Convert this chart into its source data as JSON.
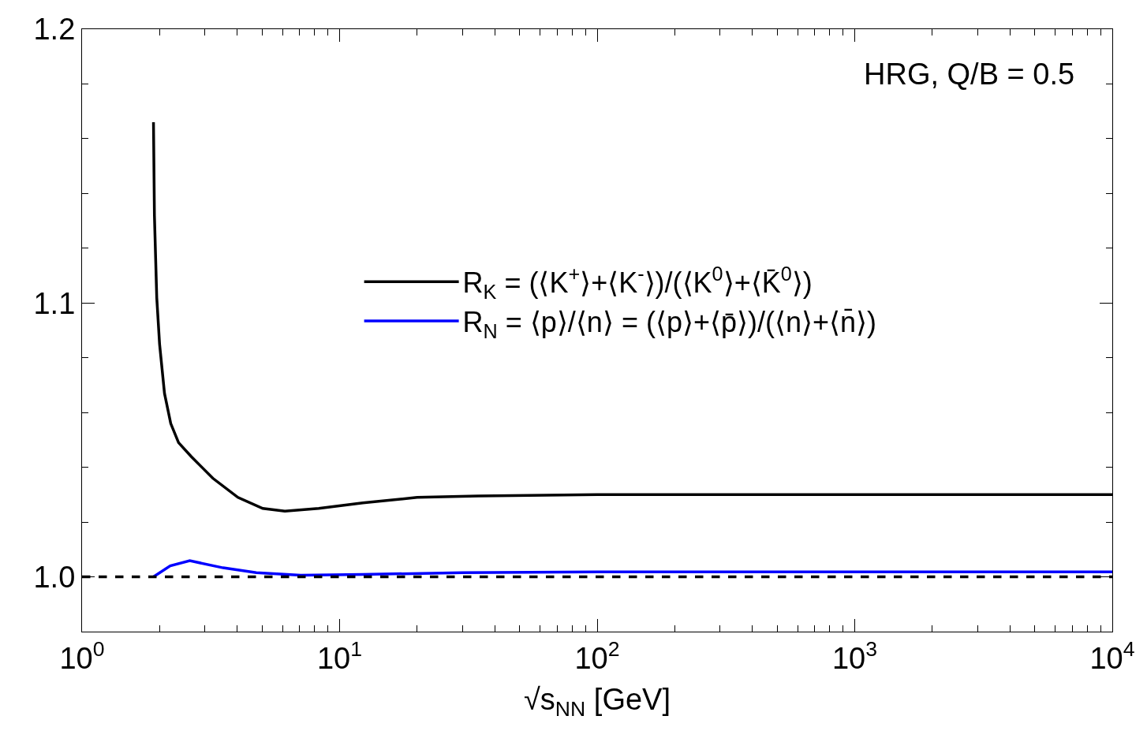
{
  "chart_data": {
    "type": "line",
    "xlabel": "√s$_{NN}$ [GeV]",
    "log": "x",
    "grid": false,
    "legend": "right",
    "line_style": "solid",
    "marker": "none",
    "annotations": [
      "HRG, Q/B = 0.5"
    ],
    "xlim": [
      1,
      10000
    ],
    "xticks": [
      {
        "value": 1,
        "label": "10$^{0}$"
      },
      {
        "value": 10,
        "label": "10$^{1}$"
      },
      {
        "value": 100,
        "label": "10$^{2}$"
      },
      {
        "value": 1000,
        "label": "10$^{3}$"
      },
      {
        "value": 10000,
        "label": "10$^{4}$"
      },
      {
        "value": 2,
        "label": null
      },
      {
        "value": 3,
        "label": null
      },
      {
        "value": 4,
        "label": null
      },
      {
        "value": 5,
        "label": null
      },
      {
        "value": 6,
        "label": null
      },
      {
        "value": 7,
        "label": null
      },
      {
        "value": 8,
        "label": null
      },
      {
        "value": 9,
        "label": null
      },
      {
        "value": 20,
        "label": null
      },
      {
        "value": 30,
        "label": null
      },
      {
        "value": 40,
        "label": null
      },
      {
        "value": 50,
        "label": null
      },
      {
        "value": 60,
        "label": null
      },
      {
        "value": 70,
        "label": null
      },
      {
        "value": 80,
        "label": null
      },
      {
        "value": 90,
        "label": null
      },
      {
        "value": 200,
        "label": null
      },
      {
        "value": 300,
        "label": null
      },
      {
        "value": 400,
        "label": null
      },
      {
        "value": 500,
        "label": null
      },
      {
        "value": 600,
        "label": null
      },
      {
        "value": 700,
        "label": null
      },
      {
        "value": 800,
        "label": null
      },
      {
        "value": 900,
        "label": null
      },
      {
        "value": 2000,
        "label": null
      },
      {
        "value": 3000,
        "label": null
      },
      {
        "value": 4000,
        "label": null
      },
      {
        "value": 5000,
        "label": null
      },
      {
        "value": 6000,
        "label": null
      },
      {
        "value": 7000,
        "label": null
      },
      {
        "value": 8000,
        "label": null
      },
      {
        "value": 9000,
        "label": null
      }
    ],
    "ylim": [
      0.98,
      1.2
    ],
    "yticks": [
      {
        "value": 1.0,
        "label": "1.0"
      },
      {
        "value": 1.1,
        "label": "1.1"
      },
      {
        "value": 1.2,
        "label": "1.2"
      },
      {
        "value": 0.98,
        "label": null
      },
      {
        "value": 1.02,
        "label": null
      },
      {
        "value": 1.04,
        "label": null
      },
      {
        "value": 1.06,
        "label": null
      },
      {
        "value": 1.08,
        "label": null
      },
      {
        "value": 1.12,
        "label": null
      },
      {
        "value": 1.14,
        "label": null
      },
      {
        "value": 1.16,
        "label": null
      },
      {
        "value": 1.18,
        "label": null
      }
    ],
    "ref_lines": [
      {
        "axis": "y",
        "value": 1.0,
        "color": "#000000",
        "line_style": "dashed"
      }
    ],
    "series": [
      {
        "name": "R$_{K}$ = (⟨K$^{+}$⟩+⟨K$^{-}$⟩)/(⟨K$^{0}$⟩+⟨K̄$^{0}$⟩)",
        "color": "#000000",
        "x": [
          1.894,
          1.91,
          1.95,
          2.0,
          2.09,
          2.21,
          2.37,
          2.65,
          3.22,
          4.03,
          5.03,
          6.13,
          8.3,
          12.3,
          20,
          34.5,
          100,
          194,
          1000,
          10000
        ],
        "values": [
          1.166,
          1.132,
          1.102,
          1.085,
          1.067,
          1.056,
          1.049,
          1.044,
          1.036,
          1.029,
          1.025,
          1.024,
          1.025,
          1.027,
          1.029,
          1.0295,
          1.03,
          1.03,
          1.03,
          1.03
        ]
      },
      {
        "name": "R$_{N}$ = ⟨p⟩/⟨n⟩ = (⟨p⟩+⟨p̄⟩)/(⟨n⟩+⟨n̄⟩)",
        "color": "#0000ff",
        "x": [
          1.894,
          2.2,
          2.62,
          3.53,
          4.75,
          7.06,
          12.3,
          30,
          100,
          1000,
          10000
        ],
        "values": [
          1.0,
          1.004,
          1.0059,
          1.0033,
          1.0015,
          1.0006,
          1.0009,
          1.0015,
          1.0018,
          1.0018,
          1.0018
        ]
      }
    ]
  }
}
